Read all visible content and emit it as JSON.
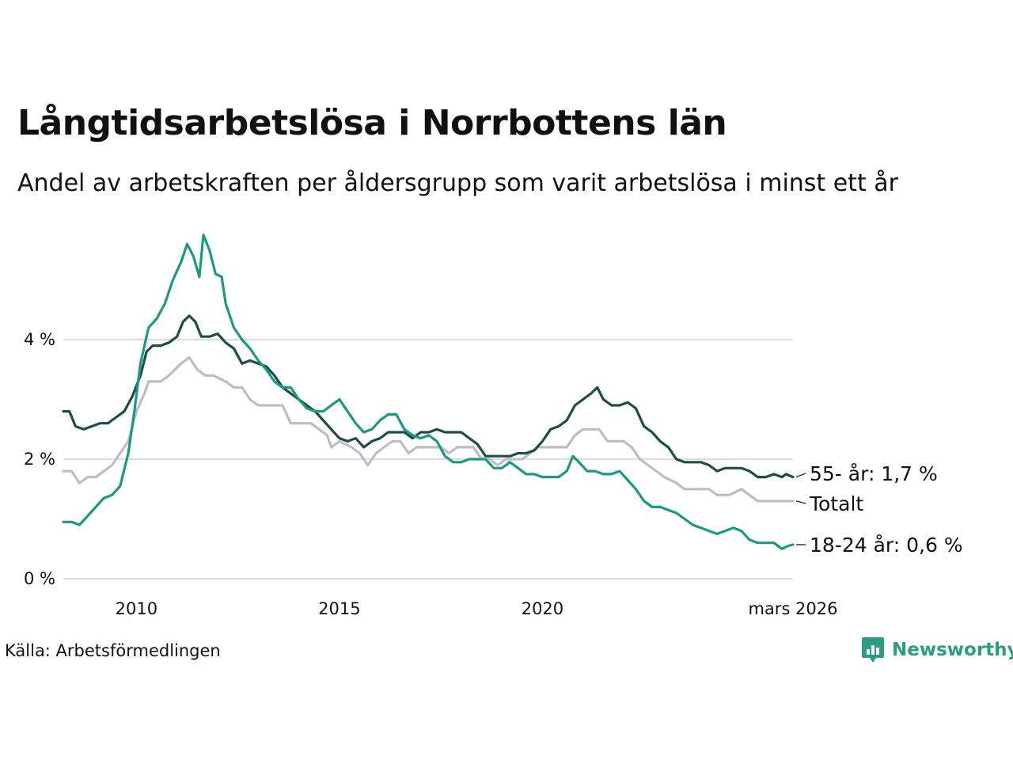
{
  "title": "Långtidsarbetslösa i Norrbottens län",
  "subtitle": "Andel av arbetskraften per åldersgrupp som varit arbetslösa i minst ett år",
  "source": "Källa: Arbetsförmedlingen",
  "brand": {
    "name": "Newsworthy",
    "icon": "bar-chart-speech-bubble-icon",
    "color": "#2a9d82"
  },
  "chart_data": {
    "type": "line",
    "x_unit": "year",
    "xlim": [
      2008.2,
      2026.17
    ],
    "ylim": [
      0,
      6
    ],
    "y_ticks": [
      {
        "value": 0,
        "label": "0 %"
      },
      {
        "value": 2,
        "label": "2 %"
      },
      {
        "value": 4,
        "label": "4 %"
      }
    ],
    "x_ticks": [
      {
        "value": 2010,
        "label": "2010"
      },
      {
        "value": 2015,
        "label": "2015"
      },
      {
        "value": 2020,
        "label": "2020"
      },
      {
        "value": 2026.17,
        "label": "mars 2026"
      }
    ],
    "grid": true,
    "series": [
      {
        "name": "Totalt",
        "end_label": "Totalt",
        "color": "#bfbcc8",
        "points": [
          [
            2008.2,
            1.8
          ],
          [
            2008.4,
            1.8
          ],
          [
            2008.6,
            1.6
          ],
          [
            2008.8,
            1.7
          ],
          [
            2009.0,
            1.7
          ],
          [
            2009.2,
            1.8
          ],
          [
            2009.4,
            1.9
          ],
          [
            2009.6,
            2.1
          ],
          [
            2009.8,
            2.3
          ],
          [
            2010.0,
            2.8
          ],
          [
            2010.2,
            3.1
          ],
          [
            2010.3,
            3.3
          ],
          [
            2010.6,
            3.3
          ],
          [
            2010.8,
            3.4
          ],
          [
            2010.95,
            3.5
          ],
          [
            2011.1,
            3.6
          ],
          [
            2011.3,
            3.7
          ],
          [
            2011.5,
            3.5
          ],
          [
            2011.7,
            3.4
          ],
          [
            2011.9,
            3.4
          ],
          [
            2012.2,
            3.3
          ],
          [
            2012.4,
            3.2
          ],
          [
            2012.6,
            3.2
          ],
          [
            2012.8,
            3.0
          ],
          [
            2013.0,
            2.9
          ],
          [
            2013.2,
            2.9
          ],
          [
            2013.4,
            2.9
          ],
          [
            2013.6,
            2.9
          ],
          [
            2013.8,
            2.6
          ],
          [
            2014.0,
            2.6
          ],
          [
            2014.3,
            2.6
          ],
          [
            2014.5,
            2.5
          ],
          [
            2014.7,
            2.4
          ],
          [
            2014.8,
            2.2
          ],
          [
            2015.0,
            2.3
          ],
          [
            2015.3,
            2.2
          ],
          [
            2015.5,
            2.1
          ],
          [
            2015.7,
            1.9
          ],
          [
            2015.9,
            2.1
          ],
          [
            2016.1,
            2.2
          ],
          [
            2016.3,
            2.3
          ],
          [
            2016.5,
            2.3
          ],
          [
            2016.7,
            2.1
          ],
          [
            2016.9,
            2.2
          ],
          [
            2017.1,
            2.2
          ],
          [
            2017.3,
            2.2
          ],
          [
            2017.5,
            2.2
          ],
          [
            2017.7,
            2.1
          ],
          [
            2017.9,
            2.2
          ],
          [
            2018.1,
            2.2
          ],
          [
            2018.3,
            2.2
          ],
          [
            2018.5,
            2.0
          ],
          [
            2018.7,
            2.0
          ],
          [
            2018.9,
            1.9
          ],
          [
            2019.1,
            2.0
          ],
          [
            2019.3,
            2.0
          ],
          [
            2019.5,
            2.0
          ],
          [
            2019.7,
            2.1
          ],
          [
            2019.9,
            2.2
          ],
          [
            2020.1,
            2.2
          ],
          [
            2020.4,
            2.2
          ],
          [
            2020.6,
            2.2
          ],
          [
            2020.8,
            2.4
          ],
          [
            2021.0,
            2.5
          ],
          [
            2021.2,
            2.5
          ],
          [
            2021.4,
            2.5
          ],
          [
            2021.6,
            2.3
          ],
          [
            2021.8,
            2.3
          ],
          [
            2022.0,
            2.3
          ],
          [
            2022.2,
            2.2
          ],
          [
            2022.4,
            2.0
          ],
          [
            2022.6,
            1.9
          ],
          [
            2022.8,
            1.8
          ],
          [
            2023.0,
            1.7
          ],
          [
            2023.3,
            1.6
          ],
          [
            2023.5,
            1.5
          ],
          [
            2023.8,
            1.5
          ],
          [
            2024.1,
            1.5
          ],
          [
            2024.3,
            1.4
          ],
          [
            2024.6,
            1.4
          ],
          [
            2024.9,
            1.5
          ],
          [
            2025.1,
            1.4
          ],
          [
            2025.3,
            1.3
          ],
          [
            2025.6,
            1.3
          ],
          [
            2025.9,
            1.3
          ],
          [
            2026.17,
            1.3
          ]
        ]
      },
      {
        "name": "55- år",
        "end_label": "55- år: 1,7 %",
        "color": "#1e4d44",
        "points": [
          [
            2008.2,
            2.8
          ],
          [
            2008.35,
            2.8
          ],
          [
            2008.5,
            2.55
          ],
          [
            2008.7,
            2.5
          ],
          [
            2008.9,
            2.55
          ],
          [
            2009.1,
            2.6
          ],
          [
            2009.3,
            2.6
          ],
          [
            2009.5,
            2.7
          ],
          [
            2009.7,
            2.8
          ],
          [
            2009.9,
            3.05
          ],
          [
            2010.1,
            3.4
          ],
          [
            2010.25,
            3.8
          ],
          [
            2010.4,
            3.9
          ],
          [
            2010.6,
            3.9
          ],
          [
            2010.8,
            3.95
          ],
          [
            2011.0,
            4.05
          ],
          [
            2011.15,
            4.3
          ],
          [
            2011.3,
            4.4
          ],
          [
            2011.45,
            4.3
          ],
          [
            2011.6,
            4.05
          ],
          [
            2011.8,
            4.05
          ],
          [
            2012.0,
            4.1
          ],
          [
            2012.2,
            3.95
          ],
          [
            2012.4,
            3.85
          ],
          [
            2012.6,
            3.6
          ],
          [
            2012.8,
            3.65
          ],
          [
            2013.0,
            3.6
          ],
          [
            2013.2,
            3.55
          ],
          [
            2013.4,
            3.4
          ],
          [
            2013.6,
            3.2
          ],
          [
            2013.8,
            3.1
          ],
          [
            2014.0,
            3.0
          ],
          [
            2014.2,
            2.9
          ],
          [
            2014.4,
            2.8
          ],
          [
            2014.6,
            2.65
          ],
          [
            2014.8,
            2.5
          ],
          [
            2015.0,
            2.35
          ],
          [
            2015.2,
            2.3
          ],
          [
            2015.4,
            2.35
          ],
          [
            2015.6,
            2.2
          ],
          [
            2015.8,
            2.3
          ],
          [
            2016.0,
            2.35
          ],
          [
            2016.2,
            2.45
          ],
          [
            2016.4,
            2.45
          ],
          [
            2016.6,
            2.45
          ],
          [
            2016.8,
            2.35
          ],
          [
            2017.0,
            2.45
          ],
          [
            2017.2,
            2.45
          ],
          [
            2017.4,
            2.5
          ],
          [
            2017.6,
            2.45
          ],
          [
            2017.8,
            2.45
          ],
          [
            2018.0,
            2.45
          ],
          [
            2018.2,
            2.35
          ],
          [
            2018.4,
            2.25
          ],
          [
            2018.6,
            2.05
          ],
          [
            2018.8,
            2.05
          ],
          [
            2019.0,
            2.05
          ],
          [
            2019.2,
            2.05
          ],
          [
            2019.4,
            2.1
          ],
          [
            2019.6,
            2.1
          ],
          [
            2019.8,
            2.15
          ],
          [
            2020.0,
            2.3
          ],
          [
            2020.2,
            2.5
          ],
          [
            2020.4,
            2.55
          ],
          [
            2020.6,
            2.65
          ],
          [
            2020.8,
            2.9
          ],
          [
            2021.0,
            3.0
          ],
          [
            2021.2,
            3.1
          ],
          [
            2021.35,
            3.2
          ],
          [
            2021.5,
            3.0
          ],
          [
            2021.7,
            2.9
          ],
          [
            2021.9,
            2.9
          ],
          [
            2022.1,
            2.95
          ],
          [
            2022.3,
            2.85
          ],
          [
            2022.5,
            2.55
          ],
          [
            2022.7,
            2.45
          ],
          [
            2022.9,
            2.3
          ],
          [
            2023.1,
            2.2
          ],
          [
            2023.3,
            2.0
          ],
          [
            2023.5,
            1.95
          ],
          [
            2023.7,
            1.95
          ],
          [
            2023.9,
            1.95
          ],
          [
            2024.1,
            1.9
          ],
          [
            2024.3,
            1.8
          ],
          [
            2024.5,
            1.85
          ],
          [
            2024.7,
            1.85
          ],
          [
            2024.9,
            1.85
          ],
          [
            2025.1,
            1.8
          ],
          [
            2025.3,
            1.7
          ],
          [
            2025.5,
            1.7
          ],
          [
            2025.7,
            1.75
          ],
          [
            2025.9,
            1.7
          ],
          [
            2026.0,
            1.75
          ],
          [
            2026.17,
            1.7
          ]
        ]
      },
      {
        "name": "18-24 år",
        "end_label": "18-24 år: 0,6 %",
        "color": "#1a9985",
        "points": [
          [
            2008.2,
            0.95
          ],
          [
            2008.4,
            0.95
          ],
          [
            2008.6,
            0.9
          ],
          [
            2008.8,
            1.05
          ],
          [
            2009.0,
            1.2
          ],
          [
            2009.2,
            1.35
          ],
          [
            2009.4,
            1.4
          ],
          [
            2009.6,
            1.55
          ],
          [
            2009.8,
            2.1
          ],
          [
            2009.95,
            2.8
          ],
          [
            2010.1,
            3.6
          ],
          [
            2010.3,
            4.2
          ],
          [
            2010.5,
            4.35
          ],
          [
            2010.7,
            4.6
          ],
          [
            2010.9,
            5.0
          ],
          [
            2011.1,
            5.3
          ],
          [
            2011.25,
            5.6
          ],
          [
            2011.4,
            5.4
          ],
          [
            2011.55,
            5.05
          ],
          [
            2011.65,
            5.75
          ],
          [
            2011.8,
            5.5
          ],
          [
            2011.95,
            5.1
          ],
          [
            2012.1,
            5.05
          ],
          [
            2012.2,
            4.6
          ],
          [
            2012.4,
            4.2
          ],
          [
            2012.6,
            4.0
          ],
          [
            2012.8,
            3.85
          ],
          [
            2013.0,
            3.65
          ],
          [
            2013.2,
            3.5
          ],
          [
            2013.4,
            3.3
          ],
          [
            2013.6,
            3.2
          ],
          [
            2013.8,
            3.2
          ],
          [
            2014.0,
            3.0
          ],
          [
            2014.2,
            2.85
          ],
          [
            2014.4,
            2.8
          ],
          [
            2014.6,
            2.8
          ],
          [
            2014.8,
            2.9
          ],
          [
            2015.0,
            3.0
          ],
          [
            2015.2,
            2.8
          ],
          [
            2015.4,
            2.6
          ],
          [
            2015.6,
            2.45
          ],
          [
            2015.8,
            2.5
          ],
          [
            2016.0,
            2.65
          ],
          [
            2016.2,
            2.75
          ],
          [
            2016.4,
            2.75
          ],
          [
            2016.6,
            2.5
          ],
          [
            2016.8,
            2.4
          ],
          [
            2017.0,
            2.35
          ],
          [
            2017.2,
            2.4
          ],
          [
            2017.4,
            2.3
          ],
          [
            2017.6,
            2.05
          ],
          [
            2017.8,
            1.95
          ],
          [
            2018.0,
            1.95
          ],
          [
            2018.2,
            2.0
          ],
          [
            2018.4,
            2.0
          ],
          [
            2018.6,
            2.0
          ],
          [
            2018.8,
            1.85
          ],
          [
            2019.0,
            1.85
          ],
          [
            2019.2,
            1.95
          ],
          [
            2019.4,
            1.85
          ],
          [
            2019.6,
            1.75
          ],
          [
            2019.8,
            1.75
          ],
          [
            2020.0,
            1.7
          ],
          [
            2020.2,
            1.7
          ],
          [
            2020.4,
            1.7
          ],
          [
            2020.6,
            1.8
          ],
          [
            2020.75,
            2.05
          ],
          [
            2020.9,
            1.95
          ],
          [
            2021.1,
            1.8
          ],
          [
            2021.3,
            1.8
          ],
          [
            2021.5,
            1.75
          ],
          [
            2021.7,
            1.75
          ],
          [
            2021.9,
            1.8
          ],
          [
            2022.1,
            1.65
          ],
          [
            2022.3,
            1.5
          ],
          [
            2022.5,
            1.3
          ],
          [
            2022.7,
            1.2
          ],
          [
            2022.9,
            1.2
          ],
          [
            2023.1,
            1.15
          ],
          [
            2023.3,
            1.1
          ],
          [
            2023.5,
            1.0
          ],
          [
            2023.7,
            0.9
          ],
          [
            2023.9,
            0.85
          ],
          [
            2024.1,
            0.8
          ],
          [
            2024.3,
            0.75
          ],
          [
            2024.5,
            0.8
          ],
          [
            2024.7,
            0.85
          ],
          [
            2024.9,
            0.8
          ],
          [
            2025.1,
            0.65
          ],
          [
            2025.3,
            0.6
          ],
          [
            2025.5,
            0.6
          ],
          [
            2025.7,
            0.6
          ],
          [
            2025.9,
            0.5
          ],
          [
            2026.05,
            0.55
          ],
          [
            2026.17,
            0.57
          ]
        ]
      }
    ]
  }
}
